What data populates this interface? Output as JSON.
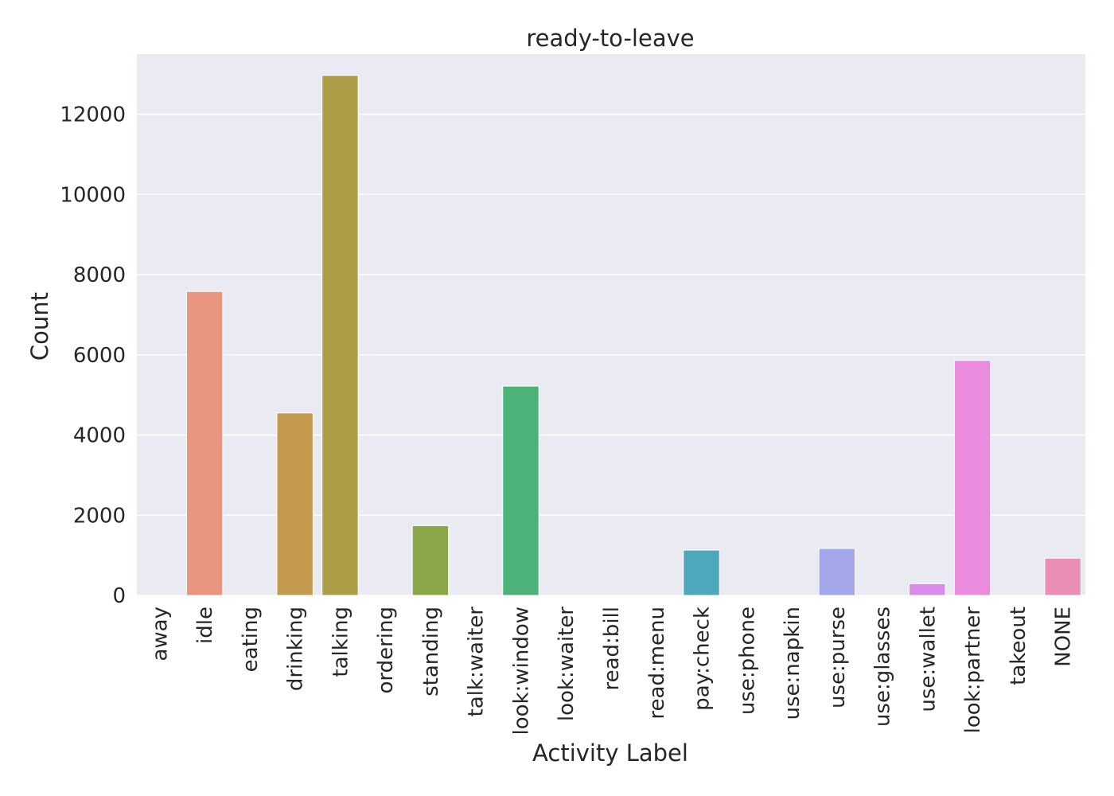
{
  "chart_data": {
    "type": "bar",
    "title": "ready-to-leave",
    "xlabel": "Activity Label",
    "ylabel": "Count",
    "ylim": [
      0,
      13500
    ],
    "yticks": [
      0,
      2000,
      4000,
      6000,
      8000,
      10000,
      12000
    ],
    "grid": true,
    "background": "#EAEAF2",
    "categories": [
      "away",
      "idle",
      "eating",
      "drinking",
      "talking",
      "ordering",
      "standing",
      "talk:waiter",
      "look:window",
      "look:waiter",
      "read:bill",
      "read:menu",
      "pay:check",
      "use:phone",
      "use:napkin",
      "use:purse",
      "use:glasses",
      "use:wallet",
      "look:partner",
      "takeout",
      "NONE"
    ],
    "values": [
      0,
      7580,
      0,
      4550,
      12970,
      0,
      1740,
      0,
      5220,
      0,
      0,
      0,
      1130,
      0,
      0,
      1170,
      0,
      290,
      5860,
      0,
      930
    ],
    "colors": [
      "#f77189",
      "#e8967f",
      "#d8a070",
      "#c39a4d",
      "#ae9d47",
      "#97a430",
      "#8aa747",
      "#5fae3b",
      "#4cb279",
      "#3ab294",
      "#37b0a6",
      "#39afb3",
      "#4da8bd",
      "#5aa0d0",
      "#779ee6",
      "#a3a7ea",
      "#c08ee6",
      "#d88ce8",
      "#ea8bde",
      "#f07bc7",
      "#e98fb5"
    ]
  }
}
